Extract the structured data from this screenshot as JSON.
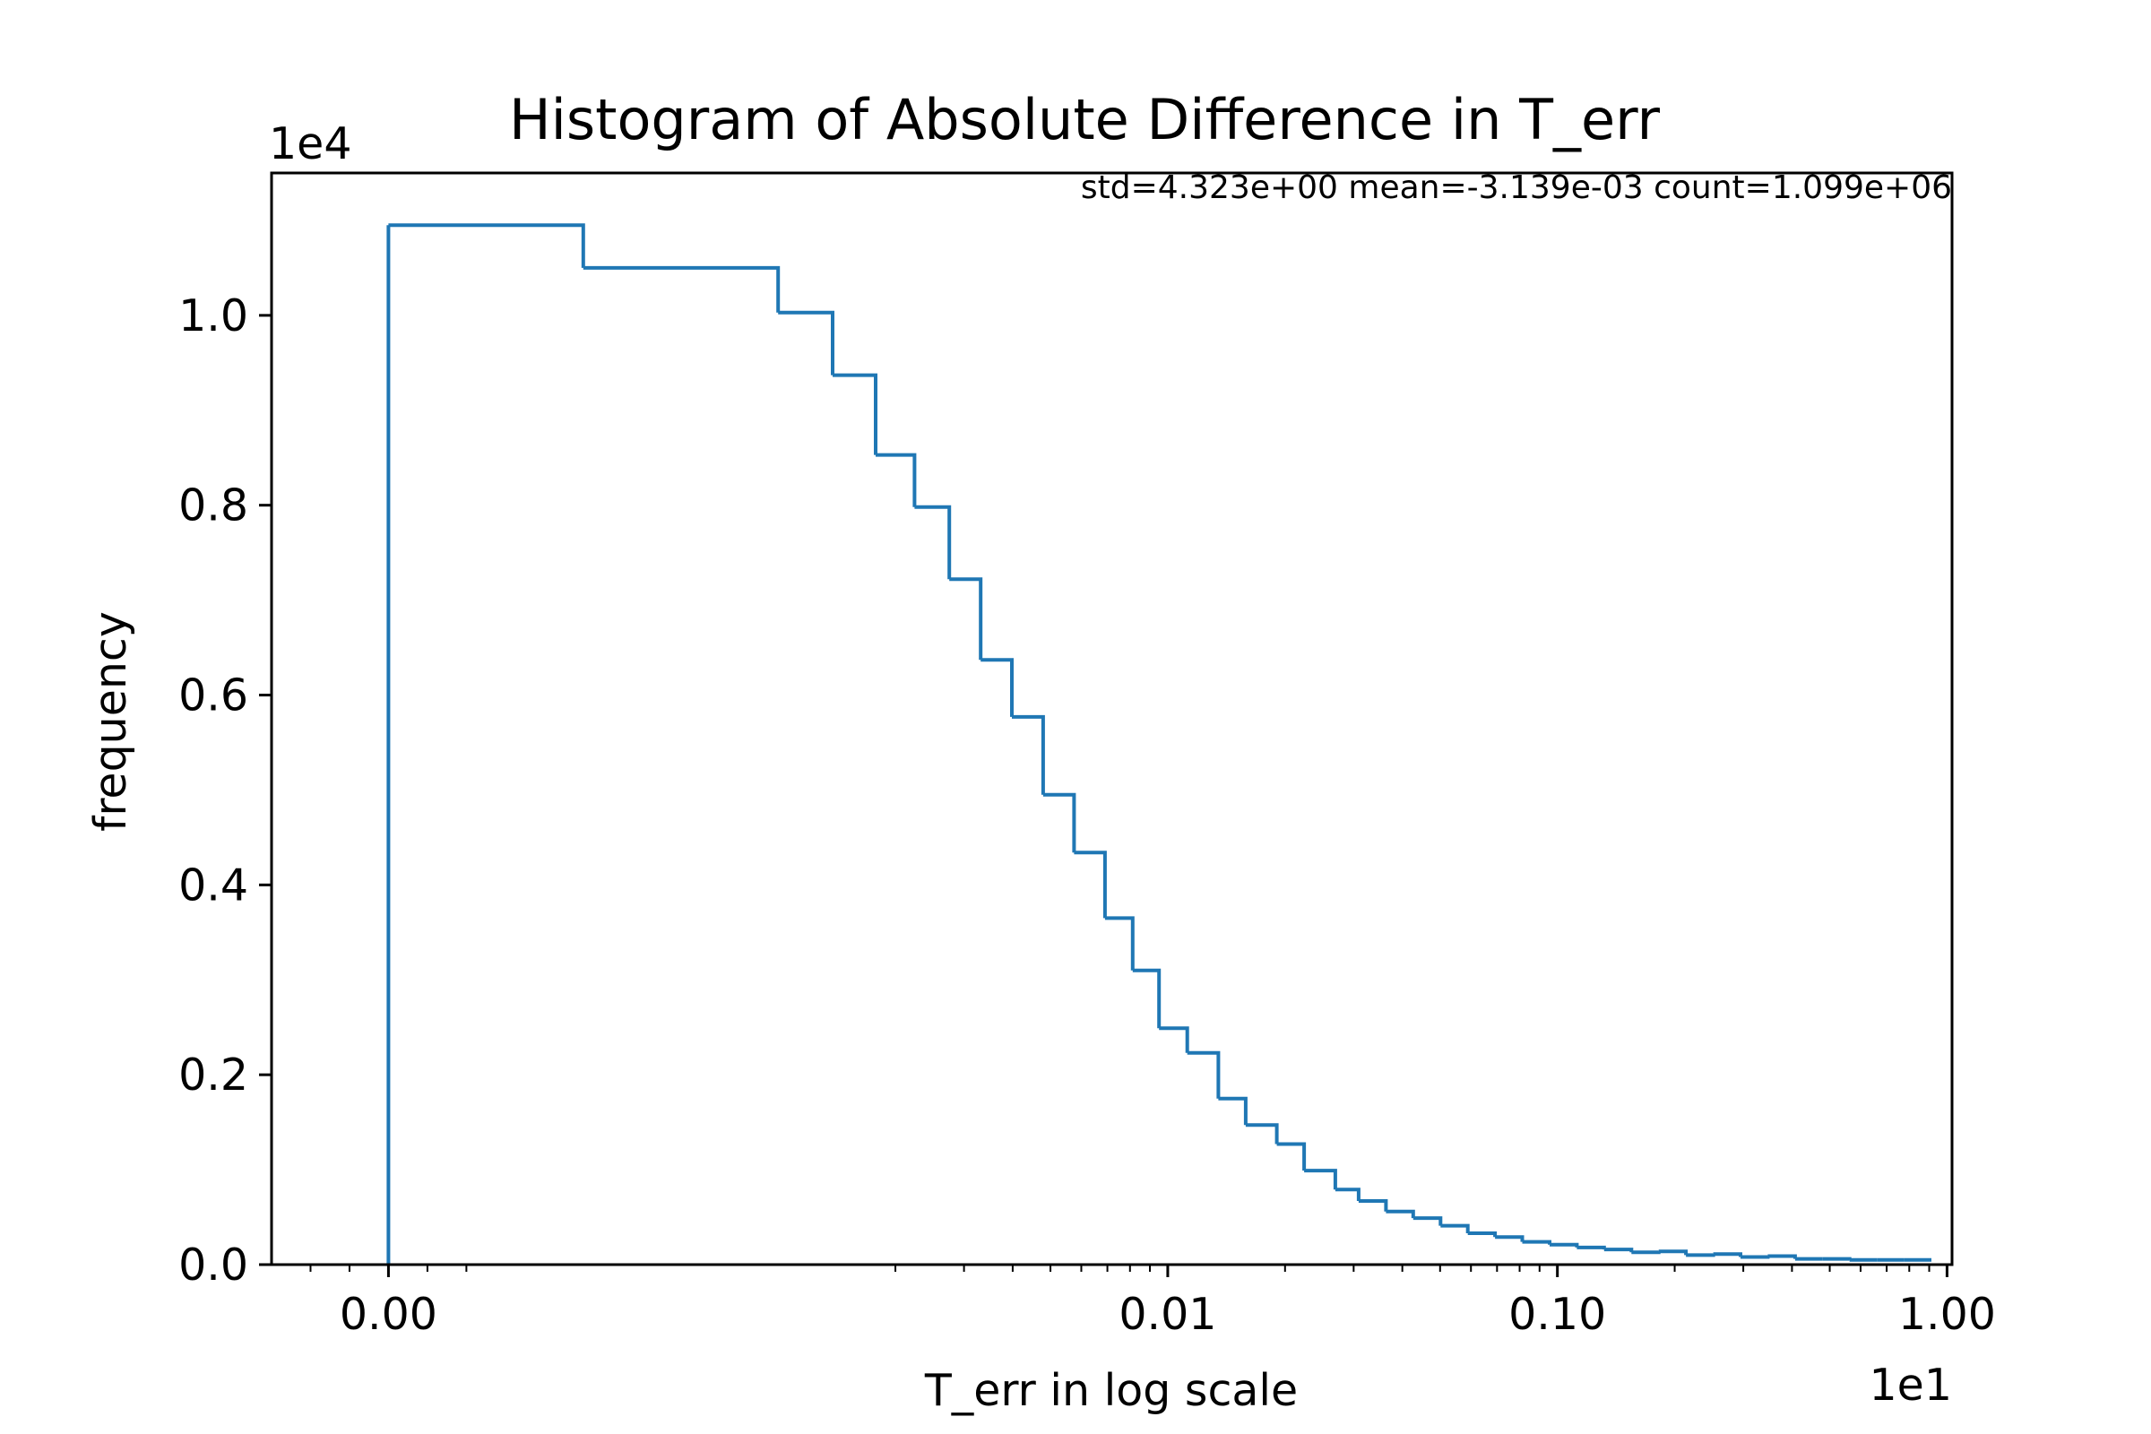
{
  "chart_data": {
    "type": "bar",
    "style": "step-histogram",
    "title": "Histogram of Absolute Difference in T_err",
    "xlabel": "T_err in log scale",
    "ylabel": "frequency",
    "stats_annotation": "std=4.323e+00 mean=-3.139e-03 count=1.099e+06",
    "x_offset_text": "1e1",
    "y_offset_text": "1e4",
    "x_scale": "symlog",
    "x_linthresh": 0.001,
    "xlim": [
      -0.0003,
      1.03
    ],
    "ylim": [
      0,
      1.15
    ],
    "x_ticks": [
      0,
      0.01,
      0.1,
      1.0
    ],
    "x_tick_labels": [
      "0.00",
      "0.01",
      "0.10",
      "1.00"
    ],
    "y_ticks": [
      0.0,
      0.2,
      0.4,
      0.6,
      0.8,
      1.0
    ],
    "y_tick_labels": [
      "0.0",
      "0.2",
      "0.4",
      "0.6",
      "0.8",
      "1.0"
    ],
    "grid": false,
    "legend": "none",
    "line_color": "#1f77b4",
    "bin_edges": [
      0,
      0.0005,
      0.001,
      0.00138,
      0.00178,
      0.00224,
      0.00275,
      0.00331,
      0.00398,
      0.00479,
      0.00575,
      0.0069,
      0.00813,
      0.0095,
      0.01122,
      0.01349,
      0.01585,
      0.01905,
      0.02239,
      0.02692,
      0.0309,
      0.03631,
      0.04266,
      0.05012,
      0.05888,
      0.06918,
      0.08128,
      0.0955,
      0.1122,
      0.1318,
      0.1549,
      0.182,
      0.2138,
      0.2512,
      0.2951,
      0.3467,
      0.4074,
      0.4786,
      0.5623,
      0.6607,
      0.7762,
      0.912
    ],
    "values": [
      1.095,
      1.05,
      1.003,
      0.937,
      0.853,
      0.798,
      0.722,
      0.637,
      0.577,
      0.495,
      0.434,
      0.365,
      0.31,
      0.249,
      0.223,
      0.175,
      0.147,
      0.127,
      0.099,
      0.079,
      0.067,
      0.056,
      0.049,
      0.041,
      0.033,
      0.029,
      0.024,
      0.021,
      0.018,
      0.016,
      0.013,
      0.014,
      0.01,
      0.011,
      0.008,
      0.009,
      0.006,
      0.006,
      0.005,
      0.005,
      0.005
    ]
  }
}
